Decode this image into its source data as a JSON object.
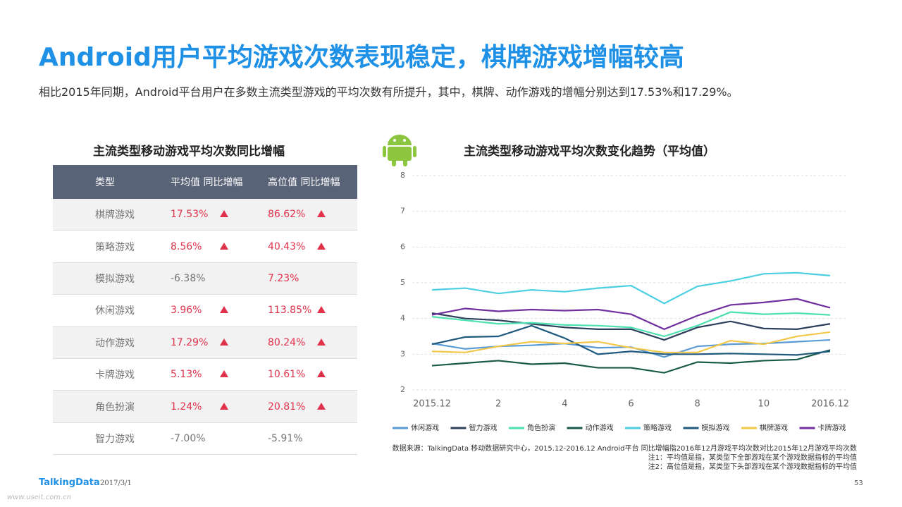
{
  "header": {
    "title": "Android用户平均游戏次数表现稳定，棋牌游戏增幅较高",
    "subtitle": "相比2015年同期，Android平台用户在多数主流类型游戏的平均次数有所提升，其中，棋牌、动作游戏的增幅分别达到17.53%和17.29%。"
  },
  "table": {
    "title": "主流类型移动游戏平均次数同比增幅",
    "columns": [
      "类型",
      "平均值 同比增幅",
      "高位值 同比增幅"
    ],
    "rows": [
      [
        "棋牌游戏",
        "17.53%",
        "86.62%"
      ],
      [
        "策略游戏",
        "8.56%",
        "40.43%"
      ],
      [
        "模拟游戏",
        "-6.38%",
        "7.23%"
      ],
      [
        "休闲游戏",
        "3.96%",
        "113.85%"
      ],
      [
        "动作游戏",
        "17.29%",
        "80.24%"
      ],
      [
        "卡牌游戏",
        "5.13%",
        "10.61%"
      ],
      [
        "角色扮演",
        "1.24%",
        "20.81%"
      ],
      [
        "智力游戏",
        "-7.00%",
        "-5.91%"
      ]
    ]
  },
  "chart_data": {
    "type": "line",
    "title": "主流类型移动游戏平均次数变化趋势（平均值）",
    "categories": [
      "2015.12",
      null,
      "2",
      null,
      "4",
      null,
      "6",
      null,
      "8",
      null,
      "10",
      null,
      "2016.12"
    ],
    "ylim": [
      2,
      8
    ],
    "yticks": [
      2,
      3,
      4,
      5,
      6,
      7,
      8
    ],
    "grid": true,
    "legend": "bottom",
    "series": [
      {
        "name": "休闲游戏",
        "color": "#5b9bd5",
        "values": [
          3.3,
          3.15,
          3.22,
          3.25,
          3.3,
          3.18,
          3.2,
          2.92,
          3.22,
          3.28,
          3.3,
          3.35,
          3.4
        ]
      },
      {
        "name": "智力游戏",
        "color": "#2e3f5c",
        "values": [
          4.15,
          4.0,
          3.95,
          3.85,
          3.75,
          3.7,
          3.7,
          3.4,
          3.75,
          3.92,
          3.72,
          3.7,
          3.85
        ]
      },
      {
        "name": "角色扮演",
        "color": "#4de0b0",
        "values": [
          4.05,
          3.95,
          3.85,
          3.88,
          3.82,
          3.8,
          3.75,
          3.5,
          3.8,
          4.18,
          4.12,
          4.15,
          4.1
        ]
      },
      {
        "name": "动作游戏",
        "color": "#1a5a4a",
        "values": [
          2.68,
          2.75,
          2.82,
          2.72,
          2.75,
          2.62,
          2.62,
          2.48,
          2.78,
          2.75,
          2.82,
          2.85,
          3.12
        ]
      },
      {
        "name": "策略游戏",
        "color": "#4ccfe0",
        "values": [
          4.8,
          4.85,
          4.7,
          4.8,
          4.75,
          4.85,
          4.92,
          4.42,
          4.9,
          5.05,
          5.25,
          5.28,
          5.2
        ]
      },
      {
        "name": "模拟游戏",
        "color": "#1f5a7e",
        "values": [
          3.28,
          3.48,
          3.5,
          3.8,
          3.45,
          3.0,
          3.08,
          3.0,
          3.0,
          3.02,
          3.0,
          2.98,
          3.08
        ]
      },
      {
        "name": "棋牌游戏",
        "color": "#f2c84b",
        "values": [
          3.08,
          3.05,
          3.22,
          3.35,
          3.3,
          3.35,
          3.18,
          3.05,
          3.05,
          3.38,
          3.28,
          3.5,
          3.62
        ]
      },
      {
        "name": "卡牌游戏",
        "color": "#7030a0",
        "values": [
          4.1,
          4.28,
          4.2,
          4.25,
          4.22,
          4.25,
          4.12,
          3.7,
          4.08,
          4.38,
          4.45,
          4.55,
          4.3
        ]
      }
    ]
  },
  "source": [
    "数据来源：TalkingData 移动数据研究中心，2015.12-2016.12 Android平台 同比增幅指2016年12月游戏平均次数对比2015年12月游戏平均次数",
    "注1：平均值是指，某类型下全部游戏在某个游戏数据指标的平均值",
    "注2：高位值是指，某类型下头部游戏在某个游戏数据指标的平均值"
  ],
  "footer": {
    "brand": "TalkingData",
    "date": "2017/3/1",
    "page": "53",
    "watermark": "www.useit.com.cn"
  }
}
